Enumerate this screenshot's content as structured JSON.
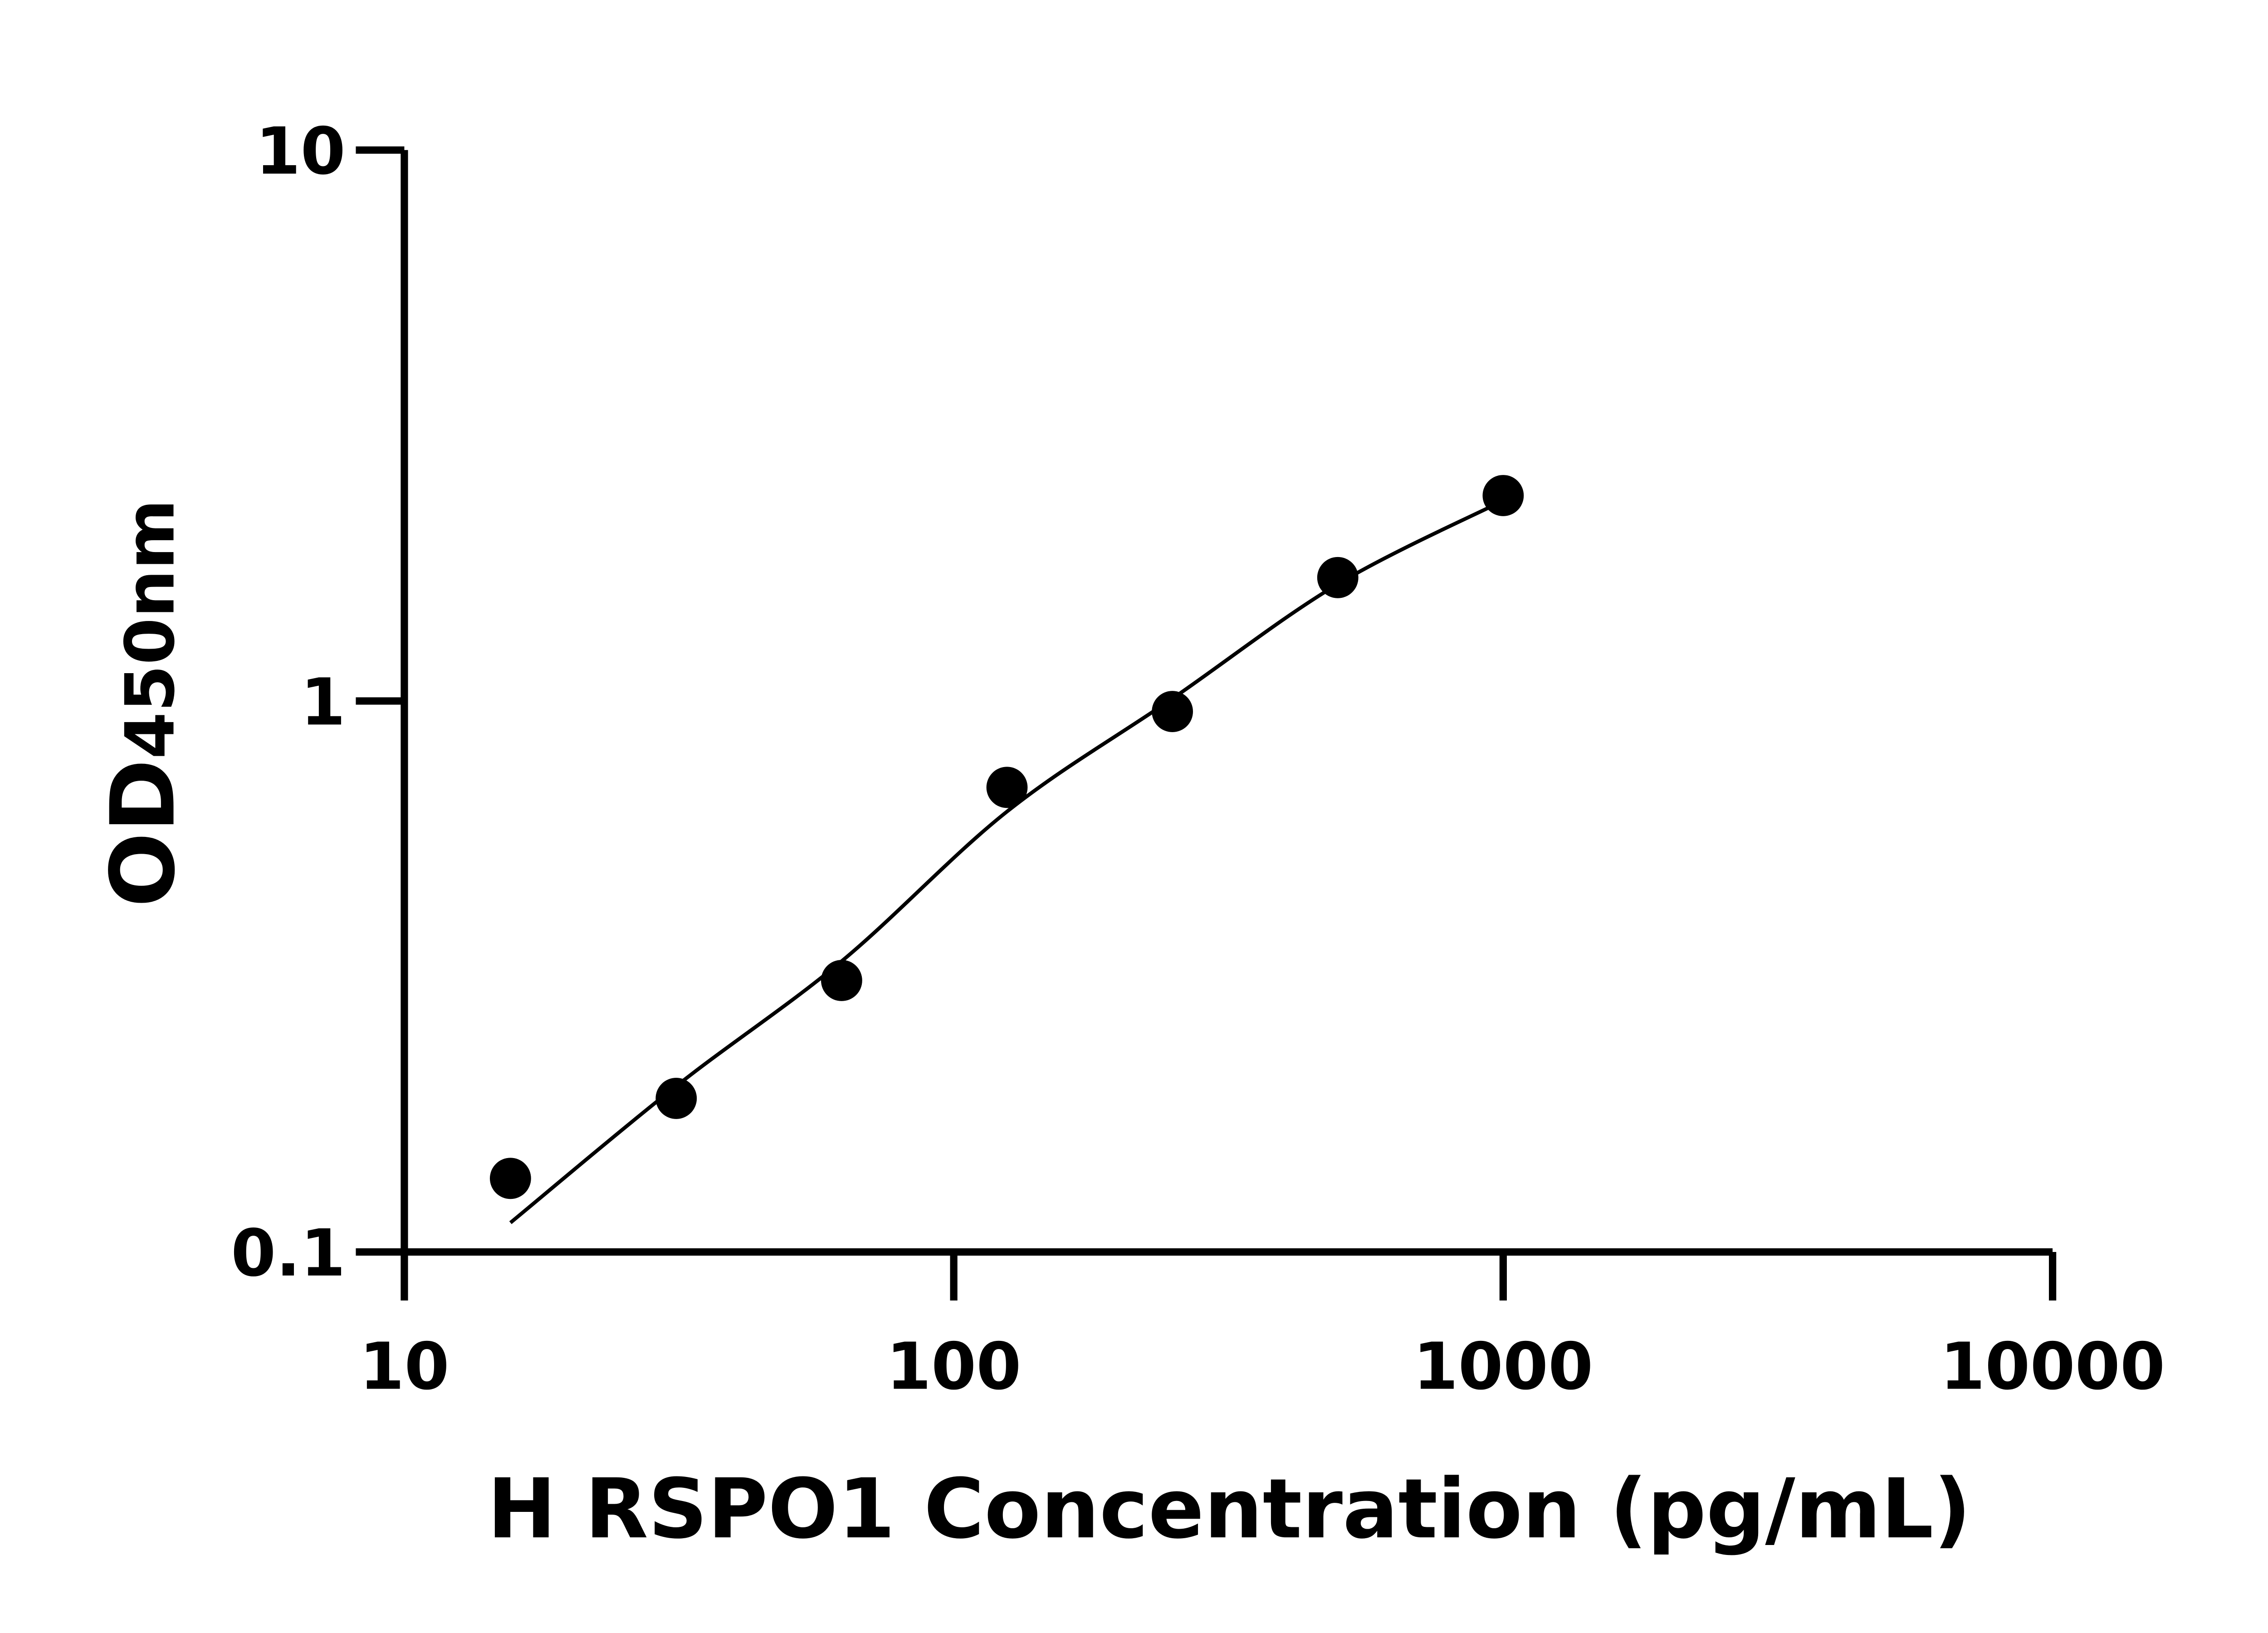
{
  "chart_data": {
    "type": "scatter",
    "title": "",
    "xlabel": "H RSPO1 Concentration (pg/mL)",
    "ylabel": {
      "main": "OD",
      "subscript": "450nm"
    },
    "x_scale": "log",
    "y_scale": "log",
    "xlim": [
      10,
      10000
    ],
    "ylim": [
      0.1,
      10
    ],
    "x_ticks": [
      "10",
      "100",
      "1000",
      "10000"
    ],
    "y_ticks": [
      "0.1",
      "1",
      "10"
    ],
    "grid": false,
    "legend": "none",
    "series": [
      {
        "type": "scatter",
        "x": [
          15.6,
          31.25,
          62.5,
          125,
          250,
          500,
          1000
        ],
        "y": [
          0.136,
          0.19,
          0.311,
          0.697,
          0.957,
          1.675,
          2.36
        ]
      },
      {
        "type": "line",
        "x": [
          15.6,
          31.25,
          62.5,
          125,
          250,
          500,
          1000
        ],
        "y": [
          0.113,
          0.2,
          0.337,
          0.63,
          1.01,
          1.63,
          2.31
        ]
      }
    ],
    "colors": {
      "points": "#000000",
      "line": "#000000",
      "axes": "#000000"
    }
  }
}
